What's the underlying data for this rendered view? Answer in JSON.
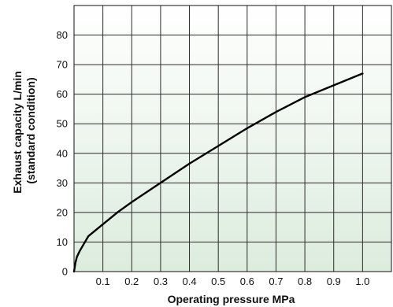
{
  "chart_data": {
    "type": "line",
    "title": "",
    "xlabel": "Operating pressure MPa",
    "ylabel_lines": [
      "Exhaust capacity L/min",
      "(standard condition)"
    ],
    "xlim": [
      0,
      1.1
    ],
    "ylim": [
      0,
      90
    ],
    "x_ticks": [
      0.1,
      0.2,
      0.3,
      0.4,
      0.5,
      0.6,
      0.7,
      0.8,
      0.9,
      1.0
    ],
    "x_tick_labels": [
      "0.1",
      "0.2",
      "0.3",
      "0.4",
      "0.5",
      "0.6",
      "0.7",
      "0.8",
      "0.9",
      "1.0"
    ],
    "y_ticks": [
      0,
      10,
      20,
      30,
      40,
      50,
      60,
      70,
      80
    ],
    "y_tick_labels": [
      "0",
      "10",
      "20",
      "30",
      "40",
      "50",
      "60",
      "70",
      "80"
    ],
    "grid": true,
    "background_gradient": [
      "#ffffff",
      "#dcecdd"
    ],
    "series": [
      {
        "color": "#000000",
        "x": [
          0.0,
          0.005,
          0.01,
          0.02,
          0.05,
          0.1,
          0.15,
          0.2,
          0.3,
          0.4,
          0.5,
          0.6,
          0.7,
          0.8,
          0.9,
          1.0
        ],
        "y": [
          0,
          3,
          5,
          7,
          12,
          16,
          20,
          23.5,
          30,
          36.5,
          42.5,
          48.5,
          54,
          59,
          63,
          67
        ]
      }
    ]
  }
}
